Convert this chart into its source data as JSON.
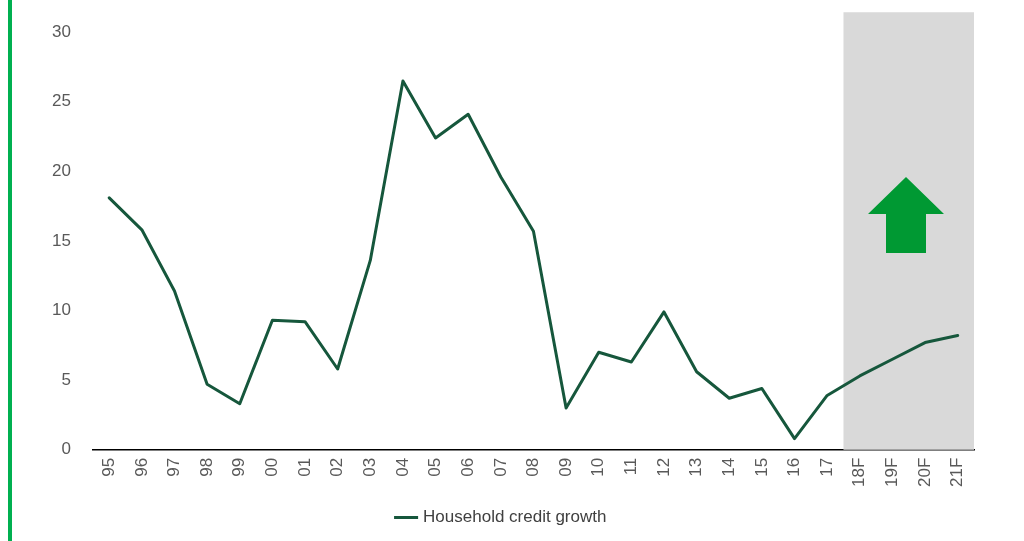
{
  "chart_data": {
    "type": "line",
    "categories": [
      "95",
      "96",
      "97",
      "98",
      "99",
      "00",
      "01",
      "02",
      "03",
      "04",
      "05",
      "06",
      "07",
      "08",
      "09",
      "10",
      "11",
      "12",
      "13",
      "14",
      "15",
      "16",
      "17",
      "18F",
      "19F",
      "20F",
      "21F"
    ],
    "series": [
      {
        "name": "Household credit growth",
        "color": "#16573c",
        "values": [
          18.1,
          15.8,
          11.4,
          4.7,
          3.3,
          9.3,
          9.2,
          5.8,
          13.6,
          26.5,
          22.4,
          24.1,
          19.6,
          15.7,
          3.0,
          7.0,
          6.3,
          9.9,
          5.6,
          3.7,
          4.4,
          0.8,
          3.9,
          5.3,
          6.5,
          7.7,
          8.2
        ]
      }
    ],
    "ylim": [
      0,
      30
    ],
    "yticks": [
      0,
      5,
      10,
      15,
      20,
      25,
      30
    ],
    "bands": [
      {
        "axis": "x",
        "from": "18F",
        "to": "21F",
        "color": "#d9d9d9"
      }
    ],
    "grid": false,
    "legend": "bottom",
    "marker": "none",
    "line_style": "solid"
  }
}
